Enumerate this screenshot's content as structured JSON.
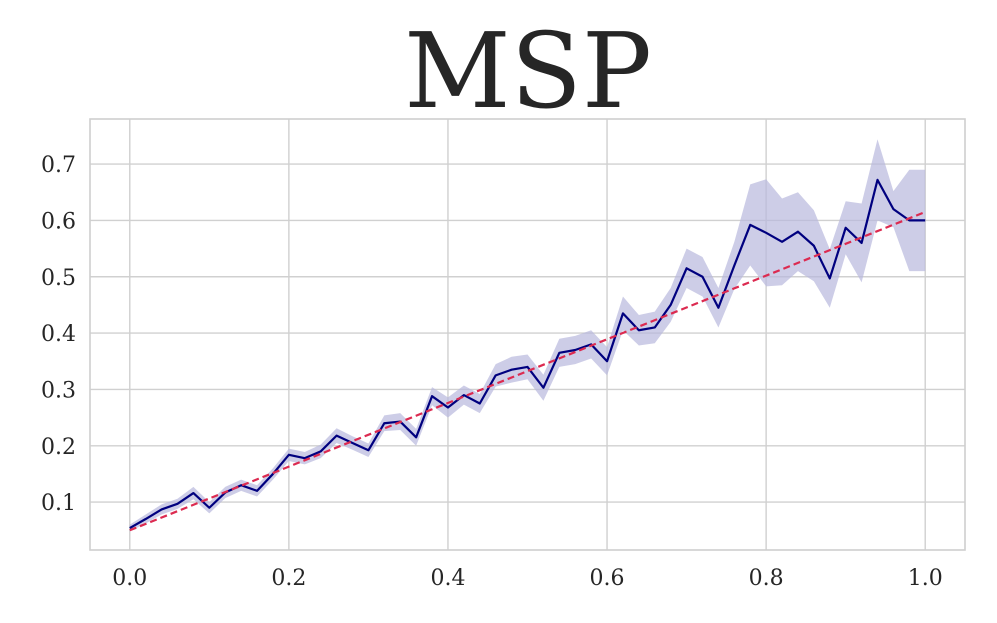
{
  "chart_data": {
    "type": "line",
    "title": "MSP",
    "xlabel": "",
    "ylabel": "",
    "xlim": [
      -0.05,
      1.05
    ],
    "ylim": [
      0.015,
      0.78
    ],
    "x_ticks": [
      "0.0",
      "0.2",
      "0.4",
      "0.6",
      "0.8",
      "1.0"
    ],
    "y_ticks": [
      "0.1",
      "0.2",
      "0.3",
      "0.4",
      "0.5",
      "0.6",
      "0.7"
    ],
    "grid": true,
    "legend": "none",
    "series": [
      {
        "style": "solid",
        "color": "#00007f",
        "band_color": "#b8b8dd",
        "x": [
          0.0,
          0.02,
          0.04,
          0.06,
          0.08,
          0.1,
          0.12,
          0.14,
          0.16,
          0.18,
          0.2,
          0.22,
          0.24,
          0.26,
          0.28,
          0.3,
          0.32,
          0.34,
          0.36,
          0.38,
          0.4,
          0.42,
          0.44,
          0.46,
          0.48,
          0.5,
          0.52,
          0.54,
          0.56,
          0.58,
          0.6,
          0.62,
          0.64,
          0.66,
          0.68,
          0.7,
          0.72,
          0.74,
          0.76,
          0.78,
          0.8,
          0.82,
          0.84,
          0.86,
          0.88,
          0.9,
          0.92,
          0.94,
          0.96,
          0.98,
          1.0
        ],
        "y": [
          0.054,
          0.07,
          0.087,
          0.097,
          0.116,
          0.09,
          0.117,
          0.13,
          0.12,
          0.15,
          0.184,
          0.178,
          0.19,
          0.218,
          0.205,
          0.192,
          0.24,
          0.243,
          0.215,
          0.288,
          0.268,
          0.29,
          0.275,
          0.325,
          0.335,
          0.34,
          0.303,
          0.365,
          0.37,
          0.38,
          0.35,
          0.435,
          0.405,
          0.41,
          0.45,
          0.515,
          0.5,
          0.445,
          0.52,
          0.592,
          0.578,
          0.562,
          0.58,
          0.555,
          0.497,
          0.587,
          0.56,
          0.672,
          0.62,
          0.6,
          0.6
        ],
        "lower": [
          0.048,
          0.062,
          0.078,
          0.088,
          0.105,
          0.08,
          0.107,
          0.12,
          0.11,
          0.14,
          0.173,
          0.167,
          0.178,
          0.205,
          0.193,
          0.18,
          0.226,
          0.228,
          0.2,
          0.272,
          0.25,
          0.273,
          0.258,
          0.305,
          0.312,
          0.318,
          0.28,
          0.34,
          0.345,
          0.355,
          0.325,
          0.405,
          0.378,
          0.382,
          0.42,
          0.48,
          0.465,
          0.41,
          0.478,
          0.52,
          0.483,
          0.485,
          0.51,
          0.492,
          0.445,
          0.54,
          0.49,
          0.6,
          0.588,
          0.51,
          0.51
        ],
        "upper": [
          0.06,
          0.078,
          0.096,
          0.106,
          0.127,
          0.1,
          0.127,
          0.14,
          0.13,
          0.16,
          0.195,
          0.189,
          0.202,
          0.231,
          0.217,
          0.204,
          0.254,
          0.258,
          0.23,
          0.304,
          0.286,
          0.307,
          0.292,
          0.345,
          0.358,
          0.362,
          0.326,
          0.39,
          0.395,
          0.405,
          0.375,
          0.465,
          0.432,
          0.438,
          0.48,
          0.55,
          0.535,
          0.48,
          0.562,
          0.664,
          0.673,
          0.639,
          0.65,
          0.618,
          0.549,
          0.634,
          0.63,
          0.744,
          0.652,
          0.69,
          0.69
        ]
      },
      {
        "style": "dashed",
        "color": "#dc2a50",
        "x": [
          0.0,
          1.0
        ],
        "y": [
          0.05,
          0.615
        ]
      }
    ]
  }
}
